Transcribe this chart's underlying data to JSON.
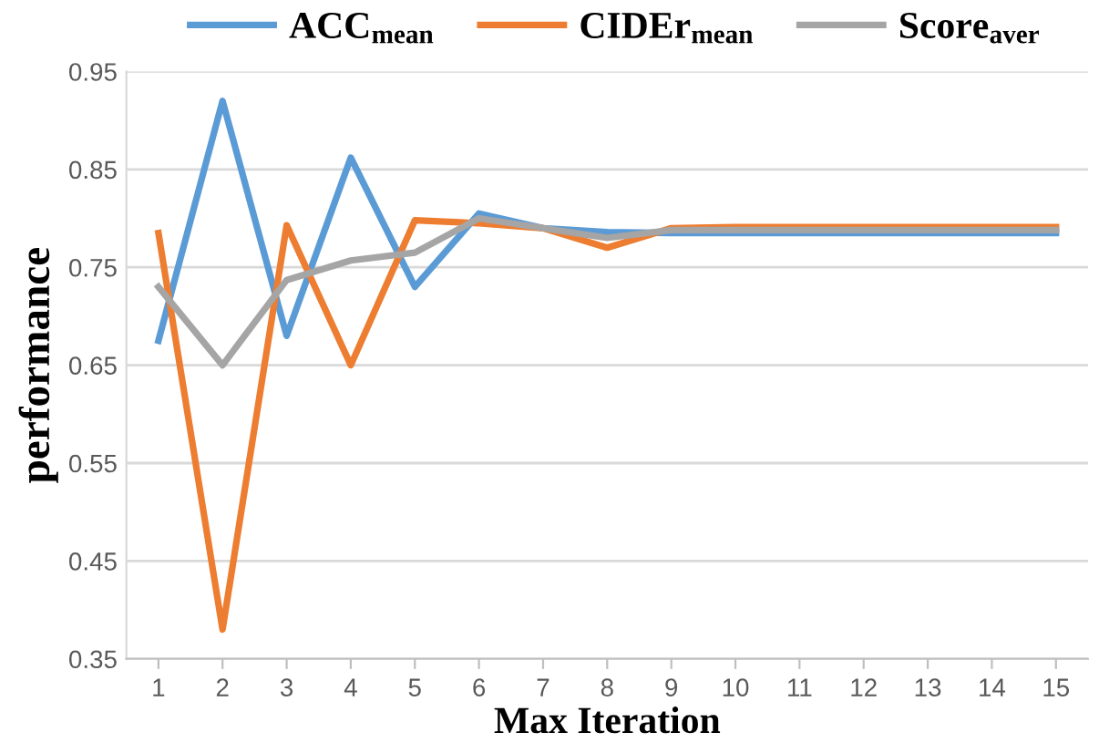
{
  "chart_data": {
    "type": "line",
    "xlabel": "Max Iteration",
    "ylabel": "performance",
    "categories": [
      "1",
      "2",
      "3",
      "4",
      "5",
      "6",
      "7",
      "8",
      "9",
      "10",
      "11",
      "12",
      "13",
      "14",
      "15"
    ],
    "series": [
      {
        "name": "ACC$_{mean}$",
        "color": "#5b9bd5",
        "values": [
          0.675,
          0.92,
          0.68,
          0.862,
          0.73,
          0.805,
          0.79,
          0.786,
          0.785,
          0.785,
          0.785,
          0.785,
          0.785,
          0.785,
          0.785
        ]
      },
      {
        "name": "CIDEr$_{mean}$",
        "color": "#ed7d31",
        "values": [
          0.785,
          0.38,
          0.793,
          0.65,
          0.798,
          0.795,
          0.79,
          0.77,
          0.79,
          0.791,
          0.791,
          0.791,
          0.791,
          0.791,
          0.791
        ]
      },
      {
        "name": "Score$_{aver}$",
        "color": "#a5a5a5",
        "values": [
          0.73,
          0.65,
          0.737,
          0.757,
          0.765,
          0.8,
          0.79,
          0.78,
          0.788,
          0.788,
          0.788,
          0.788,
          0.788,
          0.788,
          0.788
        ]
      }
    ],
    "ylim": [
      0.35,
      0.95
    ],
    "yticks": [
      0.35,
      0.45,
      0.55,
      0.65,
      0.75,
      0.85,
      0.95
    ],
    "grid": "y",
    "legend": "top",
    "marker": "none",
    "line_style": "solid"
  }
}
